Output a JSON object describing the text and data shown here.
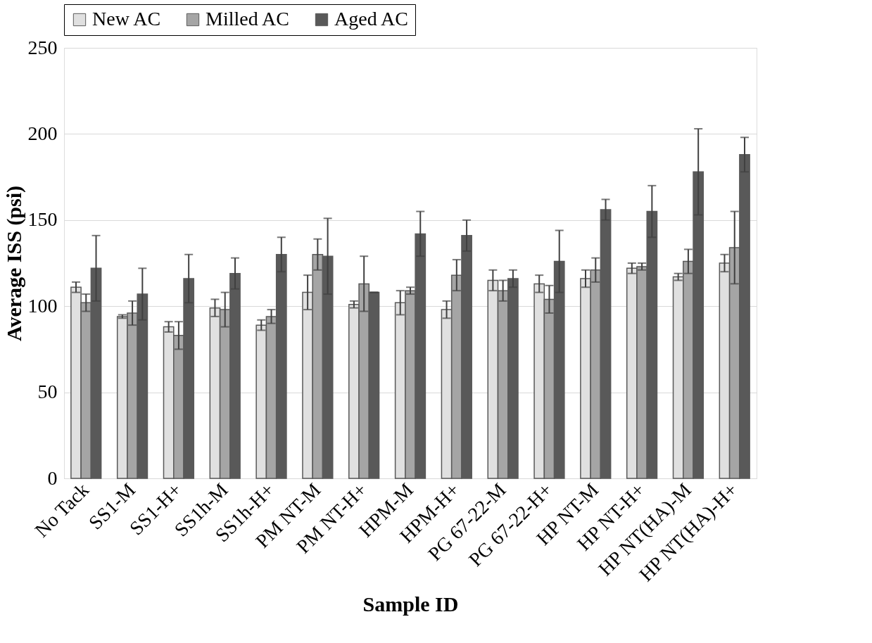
{
  "chart_data": {
    "type": "bar",
    "xlabel": "Sample ID",
    "ylabel": "Average ISS (psi)",
    "categories": [
      "No Tack",
      "SS1-M",
      "SS1-H+",
      "SS1h-M",
      "SS1h-H+",
      "PM NT-M",
      "PM NT-H+",
      "HPM-M",
      "HPM-H+",
      "PG 67-22-M",
      "PG 67-22-H+",
      "HP NT-M",
      "HP NT-H+",
      "HP NT(HA)-M",
      "HP NT(HA)-H+"
    ],
    "series": [
      {
        "name": "New AC",
        "color": "#e0e0e0",
        "values": [
          111,
          94,
          88,
          99,
          89,
          108,
          101,
          102,
          98,
          115,
          113,
          116,
          122,
          117,
          125
        ],
        "errors": [
          3,
          1,
          3,
          5,
          3,
          10,
          2,
          7,
          5,
          6,
          5,
          5,
          3,
          2,
          5
        ]
      },
      {
        "name": "Milled AC",
        "color": "#a5a5a5",
        "values": [
          102,
          96,
          83,
          98,
          94,
          130,
          113,
          109,
          118,
          109,
          104,
          121,
          123,
          126,
          134
        ],
        "errors": [
          5,
          7,
          8,
          10,
          4,
          9,
          16,
          2,
          9,
          6,
          8,
          7,
          2,
          7,
          21
        ]
      },
      {
        "name": "Aged AC",
        "color": "#595959",
        "values": [
          122,
          107,
          116,
          119,
          130,
          129,
          108,
          142,
          141,
          116,
          126,
          156,
          155,
          178,
          188
        ],
        "errors": [
          19,
          15,
          14,
          9,
          10,
          22,
          0,
          13,
          9,
          5,
          18,
          6,
          15,
          25,
          10
        ]
      }
    ],
    "ylim": [
      0,
      250
    ],
    "yticks": [
      0,
      50,
      100,
      150,
      200,
      250
    ],
    "grid": "y",
    "legend": "top"
  }
}
